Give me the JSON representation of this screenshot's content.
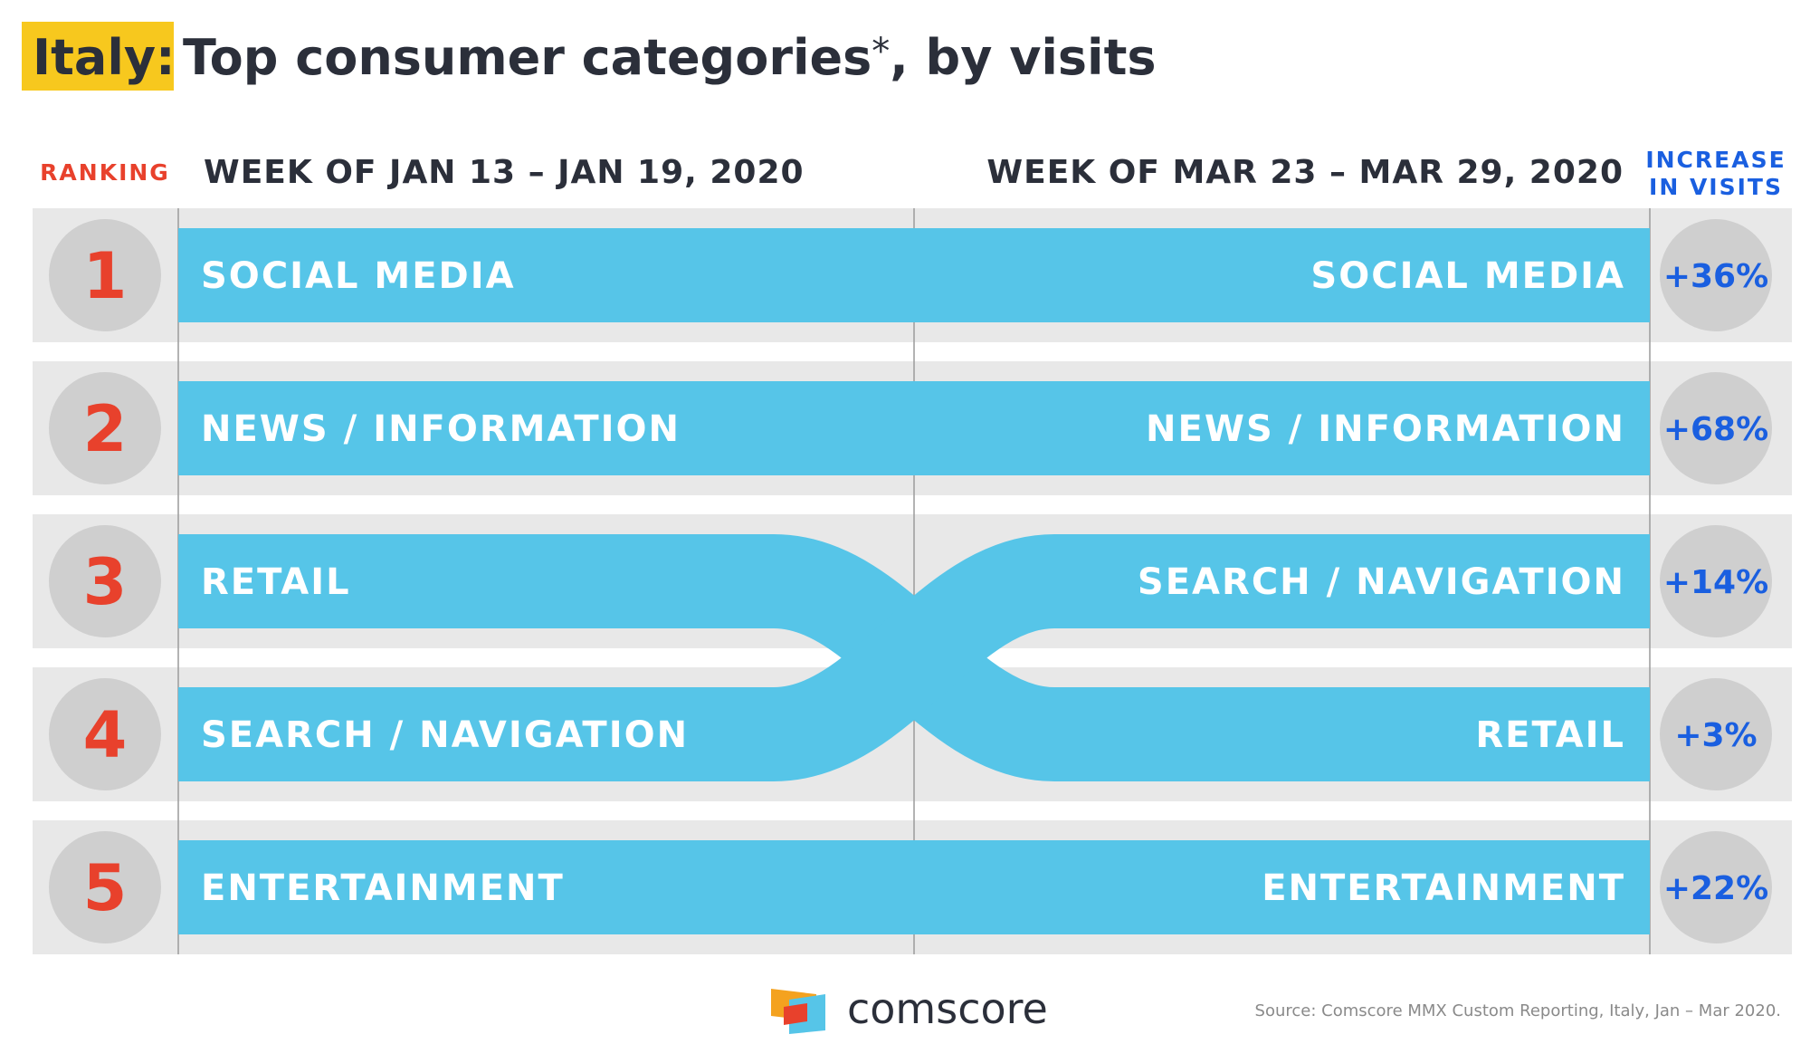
{
  "title": {
    "country": "Italy:",
    "text": "Top consumer categories",
    "asterisk": "*",
    "suffix": ", by visits"
  },
  "headers": {
    "ranking": "RANKING",
    "left_week": "WEEK OF JAN 13 – JAN 19, 2020",
    "right_week": "WEEK OF MAR 23 – MAR 29, 2020",
    "increase_line1": "INCREASE",
    "increase_line2": "IN VISITS"
  },
  "footer": {
    "brand": "comscore",
    "source": "Source: Comscore MMX Custom Reporting, Italy, Jan – Mar 2020."
  },
  "colors": {
    "highlight": "#f7c81e",
    "title": "#2b2f3a",
    "rank_number": "#e8412c",
    "ranking_label": "#e8412c",
    "band": "#56c5e8",
    "row_bg": "#e8e8e8",
    "circle": "#cfcfcf",
    "increase": "#1a5fe0",
    "band_text": "#ffffff"
  },
  "chart_data": {
    "type": "table",
    "ranks": [
      1,
      2,
      3,
      4,
      5
    ],
    "jan_ranking": [
      "SOCIAL MEDIA",
      "NEWS / INFORMATION",
      "RETAIL",
      "SEARCH / NAVIGATION",
      "ENTERTAINMENT"
    ],
    "mar_ranking": [
      "SOCIAL MEDIA",
      "NEWS / INFORMATION",
      "SEARCH / NAVIGATION",
      "RETAIL",
      "ENTERTAINMENT"
    ],
    "increase_in_visits": [
      "+36%",
      "+68%",
      "+14%",
      "+3%",
      "+22%"
    ],
    "flows": [
      {
        "category": "SOCIAL MEDIA",
        "from_rank": 1,
        "to_rank": 1
      },
      {
        "category": "NEWS / INFORMATION",
        "from_rank": 2,
        "to_rank": 2
      },
      {
        "category": "RETAIL",
        "from_rank": 3,
        "to_rank": 4
      },
      {
        "category": "SEARCH / NAVIGATION",
        "from_rank": 4,
        "to_rank": 3
      },
      {
        "category": "ENTERTAINMENT",
        "from_rank": 5,
        "to_rank": 5
      }
    ]
  }
}
